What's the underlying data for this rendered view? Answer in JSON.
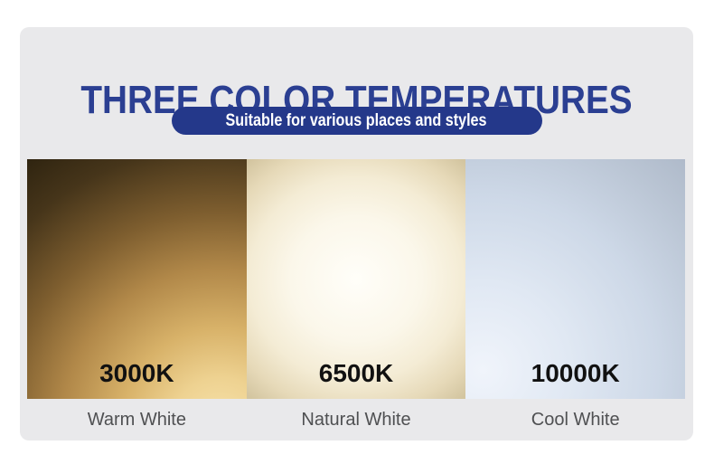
{
  "header": {
    "title": "THREE COLOR TEMPERATURES",
    "title_color": "#2b3f92"
  },
  "banner": {
    "label": "Suitable for various places and styles",
    "bg_color": "#24388a",
    "text_color": "#ffffff"
  },
  "panels": [
    {
      "kelvin": "3000K",
      "name": "Warm White",
      "gradient": "radial-gradient(circle at 88% 112%, #f7e3ac 0%, #eed291 15%, #d8b269 30%, #b18849 48%, #7e5e2f 65%, #46351a 85%, #2f2410 100%)"
    },
    {
      "kelvin": "6500K",
      "name": "Natural White",
      "gradient": "radial-gradient(ellipse 75% 65% at 50% 50%, #fffef9 0%, #fbf7ea 40%, #f4ecd5 65%, #e6d9b8 85%, #d3c5a0 100%)"
    },
    {
      "kelvin": "10000K",
      "name": "Cool White",
      "gradient": "radial-gradient(circle at 8% 88%, #f0f4fb 0%, #e0e8f3 30%, #cdd8e7 60%, #bac5d4 85%, #afbaca 100%)"
    }
  ],
  "colors": {
    "card_bg": "#e9e9eb",
    "kelvin_text": "#111111",
    "name_text": "#4f5052"
  }
}
